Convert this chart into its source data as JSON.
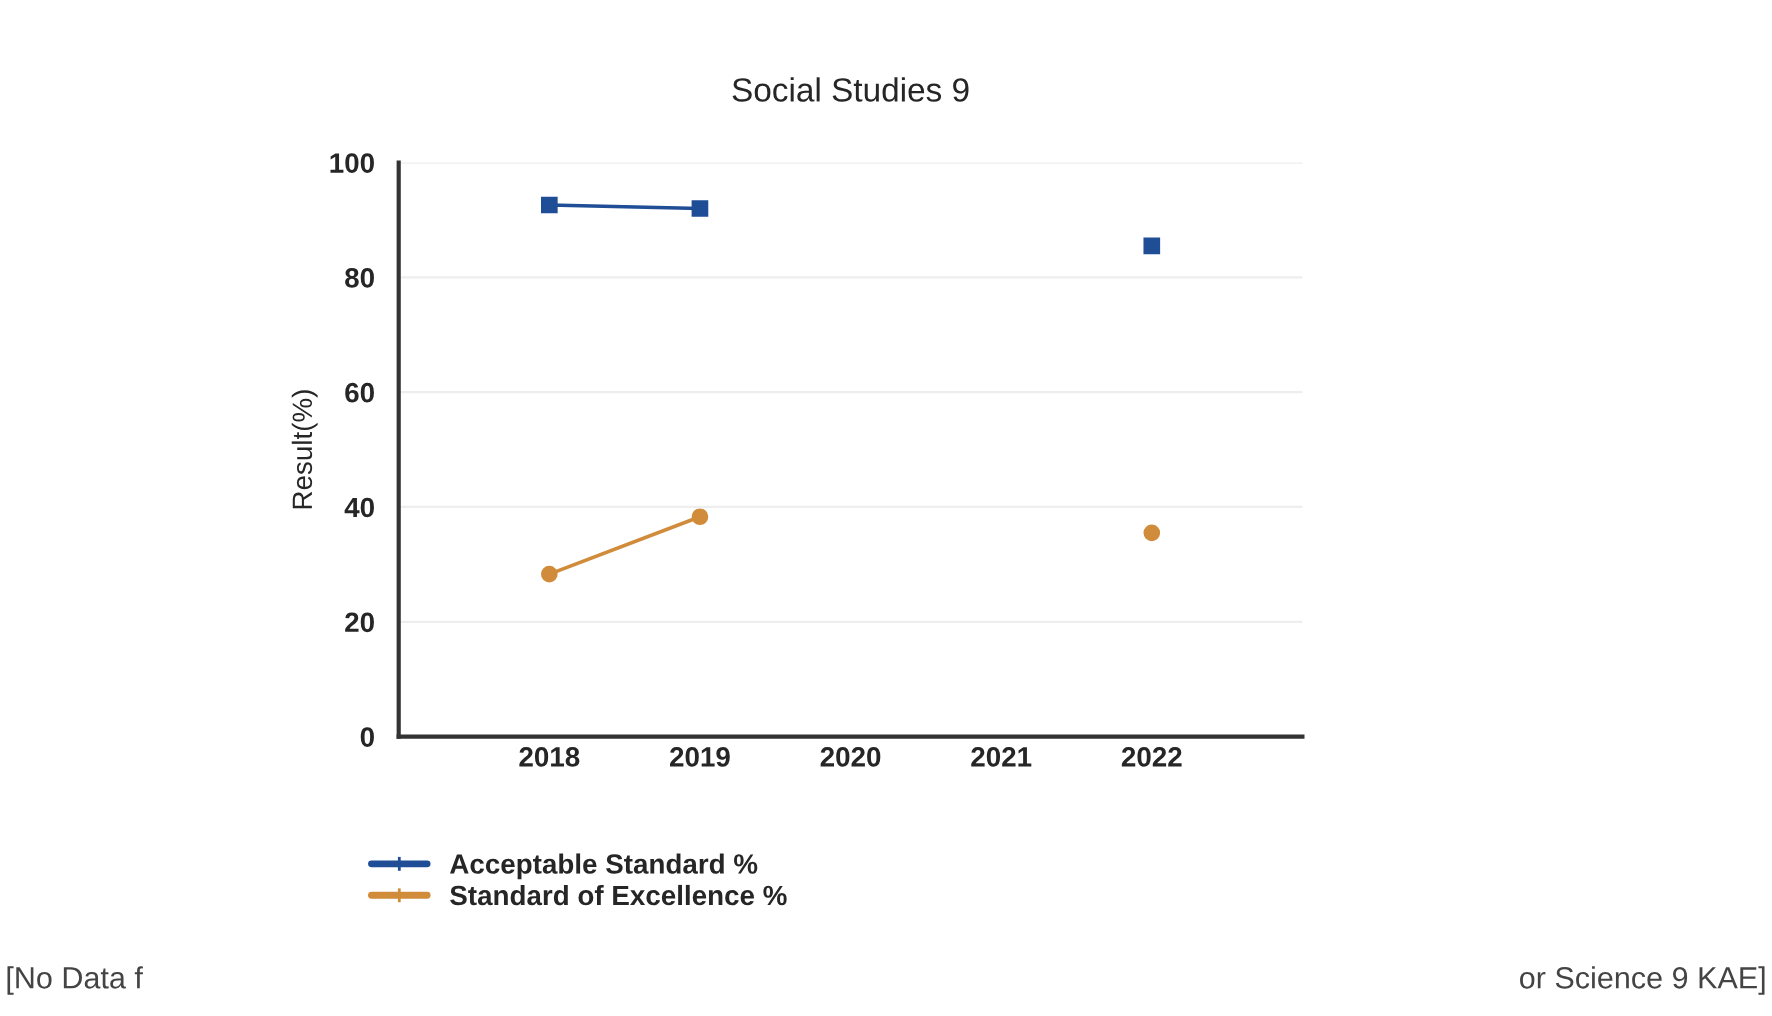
{
  "chart_data": {
    "type": "line",
    "title": "Social Studies 9",
    "ylabel": "Result(%)",
    "categories": [
      "2018",
      "2019",
      "2020",
      "2021",
      "2022"
    ],
    "series": [
      {
        "name": "Acceptable Standard %",
        "color": "#1f4e96",
        "marker": "square",
        "values": [
          92.6,
          92.0,
          null,
          null,
          85.5
        ]
      },
      {
        "name": "Standard of Excellence %",
        "color": "#d08c3a",
        "marker": "circle",
        "values": [
          28.3,
          38.3,
          null,
          null,
          35.5
        ]
      }
    ],
    "ylim": [
      0,
      100
    ],
    "yticks": [
      0,
      20,
      40,
      60,
      80,
      100
    ],
    "grid": "y",
    "legend": "bottom",
    "annotations": [
      "[No Data f",
      "or Science 9 KAE]"
    ]
  }
}
